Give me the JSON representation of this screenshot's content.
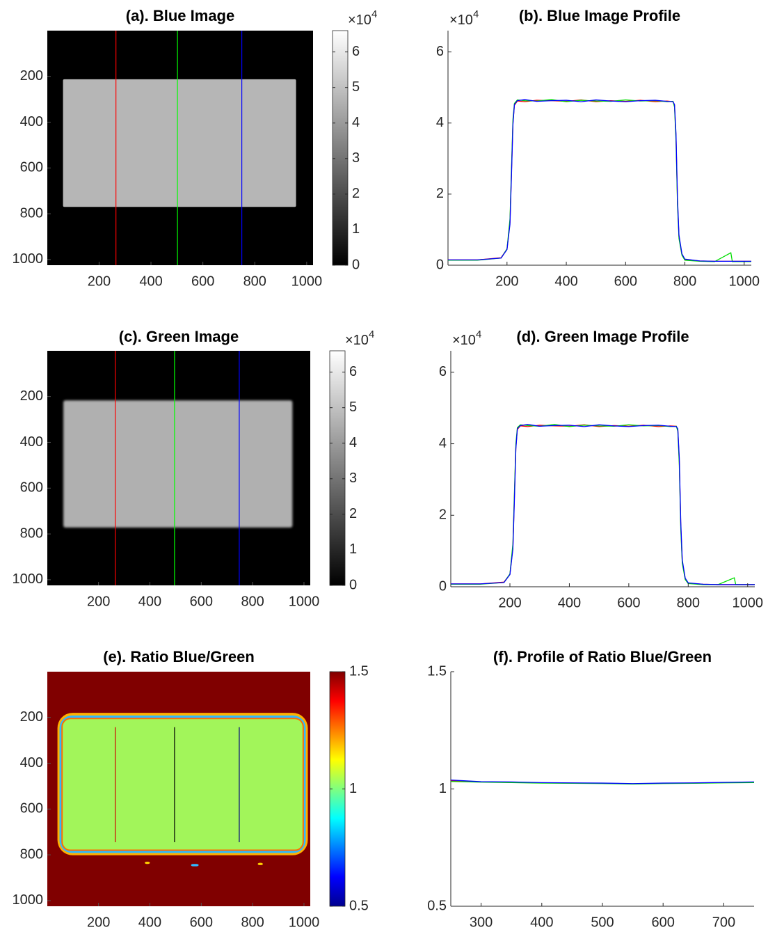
{
  "chart_data": [
    {
      "type": "image",
      "title": "(a). Blue Image",
      "xlim": [
        0.5,
        1024.5
      ],
      "xticks": [
        200,
        400,
        600,
        800,
        1000
      ],
      "ylim": [
        0.5,
        1024.5
      ],
      "yticks": [
        200,
        400,
        600,
        800,
        1000
      ],
      "y_reversed": true,
      "colormap": "gray",
      "clim": [
        0,
        66000
      ],
      "cticks": [
        0,
        {
          "value": 10000,
          "label": "1"
        },
        {
          "value": 20000,
          "label": "2"
        },
        {
          "value": 30000,
          "label": "3"
        },
        {
          "value": 40000,
          "label": "4"
        },
        {
          "value": 50000,
          "label": "5"
        },
        {
          "value": 60000,
          "label": "6"
        }
      ],
      "exponent": {
        "base": "×10",
        "power": "4"
      },
      "lines": [
        {
          "x": 265,
          "color": "#ff0000"
        },
        {
          "x": 502,
          "color": "#00ff00"
        },
        {
          "x": 750,
          "color": "#0000ff"
        }
      ]
    },
    {
      "type": "line",
      "title": "(b). Blue Image Profile",
      "x": [
        1,
        100,
        180,
        200,
        210,
        215,
        220,
        225,
        235,
        260,
        300,
        350,
        400,
        450,
        500,
        550,
        600,
        650,
        700,
        740,
        760,
        765,
        770,
        775,
        780,
        790,
        800,
        850,
        900,
        955,
        960,
        1024
      ],
      "series": [
        {
          "color": "#ff0000",
          "values": [
            1500,
            1500,
            2100,
            4500,
            12000,
            26000,
            40000,
            45000,
            46200,
            46000,
            46400,
            46300,
            46100,
            46500,
            46000,
            46300,
            46100,
            46400,
            46000,
            46200,
            46000,
            45000,
            36000,
            18000,
            8000,
            3000,
            1600,
            1200,
            1100,
            1100,
            1100,
            1100
          ]
        },
        {
          "color": "#00dd00",
          "values": [
            1400,
            1400,
            2000,
            4600,
            13000,
            27000,
            41000,
            45500,
            46500,
            46300,
            46200,
            46600,
            46000,
            46400,
            46200,
            46100,
            46500,
            46200,
            46300,
            46000,
            46100,
            44500,
            35000,
            17000,
            7500,
            2800,
            1400,
            1100,
            1000,
            3500,
            1000,
            1000
          ]
        },
        {
          "color": "#0000ff",
          "values": [
            1500,
            1500,
            2000,
            4400,
            11500,
            25000,
            39500,
            45200,
            46300,
            46600,
            46100,
            46300,
            46400,
            46000,
            46500,
            46200,
            46000,
            46300,
            46400,
            46100,
            46000,
            45200,
            37000,
            19000,
            8500,
            3200,
            1700,
            1200,
            1100,
            1100,
            1100,
            1100
          ]
        }
      ],
      "xlim": [
        1,
        1024
      ],
      "xticks": [
        200,
        400,
        600,
        800,
        1000
      ],
      "ylim": [
        0,
        66000
      ],
      "yticks": [
        0,
        {
          "value": 20000,
          "label": "2"
        },
        {
          "value": 40000,
          "label": "4"
        },
        {
          "value": 60000,
          "label": "6"
        }
      ],
      "exponent": {
        "base": "×10",
        "power": "4"
      }
    },
    {
      "type": "image",
      "title": "(c). Green Image",
      "xlim": [
        0.5,
        1024.5
      ],
      "xticks": [
        200,
        400,
        600,
        800,
        1000
      ],
      "ylim": [
        0.5,
        1024.5
      ],
      "yticks": [
        200,
        400,
        600,
        800,
        1000
      ],
      "y_reversed": true,
      "colormap": "gray",
      "clim": [
        0,
        66000
      ],
      "cticks": [
        0,
        {
          "value": 10000,
          "label": "1"
        },
        {
          "value": 20000,
          "label": "2"
        },
        {
          "value": 30000,
          "label": "3"
        },
        {
          "value": 40000,
          "label": "4"
        },
        {
          "value": 50000,
          "label": "5"
        },
        {
          "value": 60000,
          "label": "6"
        }
      ],
      "exponent": {
        "base": "×10",
        "power": "4"
      },
      "lines": [
        {
          "x": 265,
          "color": "#ff0000"
        },
        {
          "x": 496,
          "color": "#00ff00"
        },
        {
          "x": 748,
          "color": "#0000ff"
        }
      ]
    },
    {
      "type": "line",
      "title": "(d). Green Image Profile",
      "x": [
        1,
        100,
        180,
        200,
        210,
        215,
        220,
        225,
        235,
        260,
        300,
        350,
        400,
        450,
        500,
        550,
        600,
        650,
        700,
        740,
        760,
        765,
        770,
        775,
        780,
        790,
        800,
        850,
        900,
        955,
        960,
        1024
      ],
      "series": [
        {
          "color": "#ff0000",
          "values": [
            800,
            800,
            1300,
            3500,
            11000,
            25000,
            39000,
            44000,
            45000,
            44800,
            45200,
            45000,
            44900,
            45300,
            44800,
            45100,
            44900,
            45200,
            44800,
            45000,
            44900,
            44000,
            35000,
            17000,
            7000,
            2200,
            1000,
            700,
            600,
            600,
            600,
            600
          ]
        },
        {
          "color": "#00dd00",
          "values": [
            700,
            700,
            1200,
            3600,
            12000,
            26000,
            40000,
            44500,
            45300,
            45100,
            44900,
            45400,
            44800,
            45200,
            45000,
            44900,
            45300,
            45000,
            45100,
            44800,
            44900,
            43500,
            34000,
            16000,
            6500,
            2000,
            900,
            600,
            600,
            2500,
            600,
            600
          ]
        },
        {
          "color": "#0000ff",
          "values": [
            800,
            800,
            1200,
            3400,
            10500,
            24000,
            38500,
            44200,
            45100,
            45400,
            44900,
            45100,
            45200,
            44800,
            45300,
            45000,
            44800,
            45100,
            45200,
            44900,
            44800,
            44200,
            36000,
            18000,
            7500,
            2400,
            1100,
            700,
            600,
            600,
            600,
            600
          ]
        }
      ],
      "xlim": [
        1,
        1024
      ],
      "xticks": [
        200,
        400,
        600,
        800,
        1000
      ],
      "ylim": [
        0,
        66000
      ],
      "yticks": [
        0,
        {
          "value": 20000,
          "label": "2"
        },
        {
          "value": 40000,
          "label": "4"
        },
        {
          "value": 60000,
          "label": "6"
        }
      ],
      "exponent": {
        "base": "×10",
        "power": "4"
      }
    },
    {
      "type": "image",
      "title": "(e). Ratio Blue/Green",
      "xlim": [
        0.5,
        1024.5
      ],
      "xticks": [
        200,
        400,
        600,
        800,
        1000
      ],
      "ylim": [
        0.5,
        1024.5
      ],
      "yticks": [
        200,
        400,
        600,
        800,
        1000
      ],
      "y_reversed": true,
      "colormap": "jet",
      "clim": [
        0.5,
        1.5
      ],
      "cticks": [
        0.5,
        1,
        1.5
      ],
      "lines": [
        {
          "x": 265,
          "y": [
            243,
            745
          ],
          "color": "#d00000"
        },
        {
          "x": 496,
          "y": [
            243,
            745
          ],
          "color": "#000000"
        },
        {
          "x": 748,
          "y": [
            243,
            745
          ],
          "color": "#000080"
        }
      ]
    },
    {
      "type": "line",
      "title": "(f). Profile of Ratio Blue/Green",
      "x": [
        250,
        300,
        350,
        400,
        450,
        500,
        550,
        600,
        650,
        700,
        750
      ],
      "series": [
        {
          "color": "#ff0000",
          "values": [
            1.035,
            1.03,
            1.028,
            1.026,
            1.025,
            1.024,
            1.022,
            1.024,
            1.025,
            1.027,
            1.028
          ]
        },
        {
          "color": "#00dd00",
          "values": [
            1.032,
            1.029,
            1.027,
            1.025,
            1.024,
            1.023,
            1.021,
            1.023,
            1.024,
            1.026,
            1.027
          ]
        },
        {
          "color": "#0000ff",
          "values": [
            1.038,
            1.031,
            1.03,
            1.027,
            1.026,
            1.025,
            1.023,
            1.025,
            1.026,
            1.028,
            1.03
          ]
        }
      ],
      "xlim": [
        250,
        750
      ],
      "xticks": [
        300,
        400,
        500,
        600,
        700
      ],
      "ylim": [
        0.5,
        1.5
      ],
      "yticks": [
        0.5,
        1,
        1.5
      ]
    }
  ]
}
